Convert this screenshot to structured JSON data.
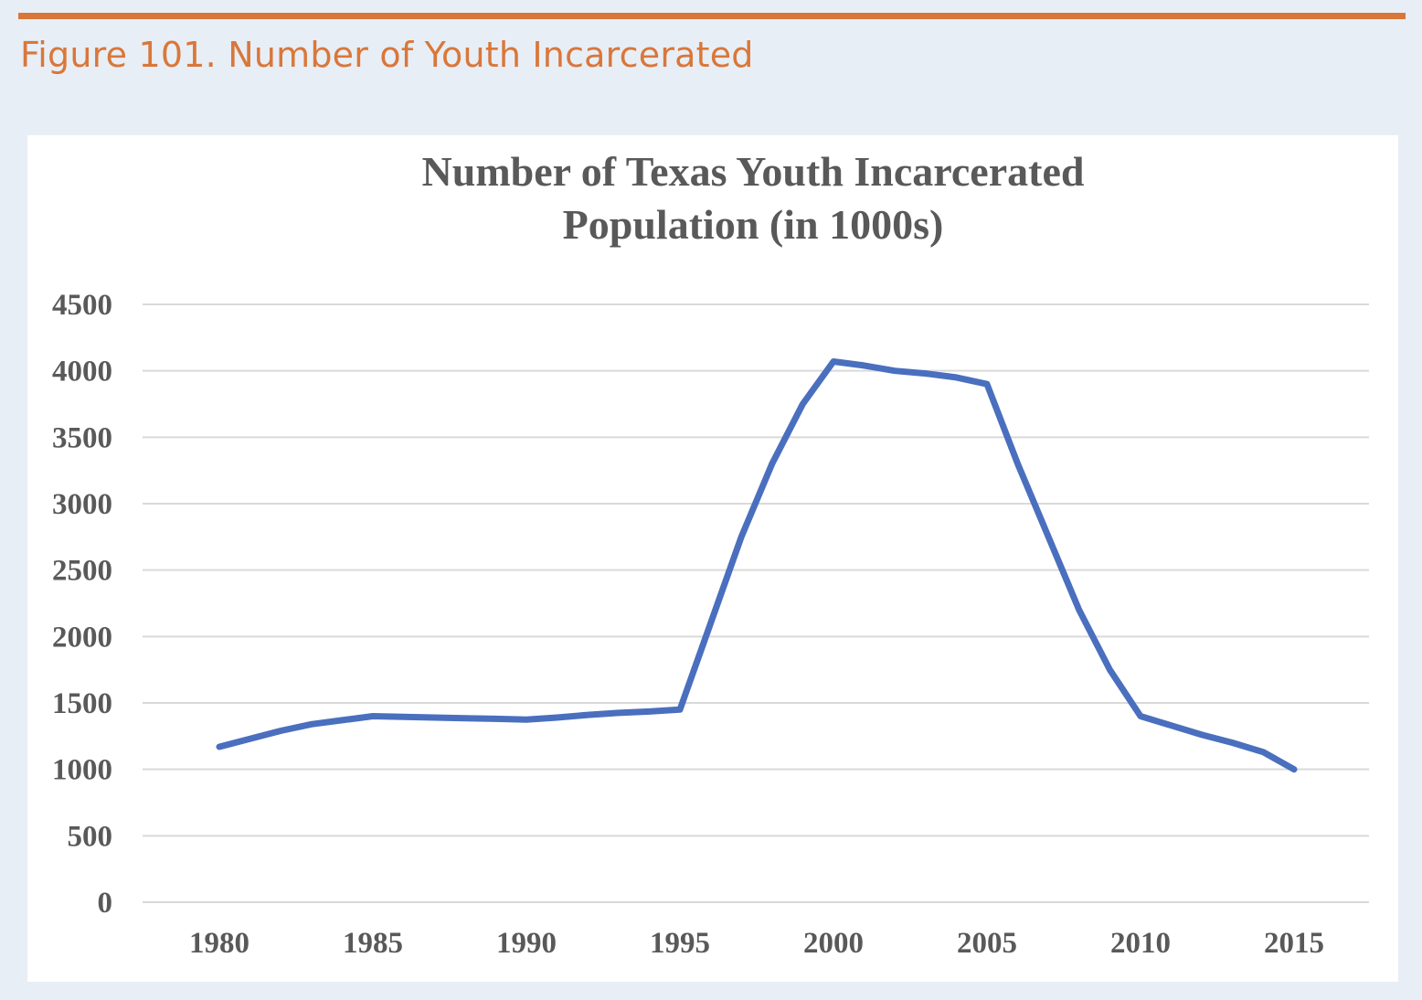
{
  "figure": {
    "caption": "Figure 101. Number of Youth Incarcerated",
    "accent_color": "#d9773a",
    "background_color": "#e8eef5"
  },
  "chart_data": {
    "type": "line",
    "title_lines": [
      "Number of Texas Youth Incarcerated",
      "Population (in 1000s)"
    ],
    "x": [
      1980,
      1981,
      1982,
      1983,
      1984,
      1985,
      1986,
      1987,
      1988,
      1989,
      1990,
      1991,
      1992,
      1993,
      1994,
      1995,
      1996,
      1997,
      1998,
      1999,
      2000,
      2001,
      2002,
      2003,
      2004,
      2005,
      2006,
      2007,
      2008,
      2009,
      2010,
      2011,
      2012,
      2013,
      2014,
      2015
    ],
    "series": [
      {
        "name": "",
        "color": "#4a6fbe",
        "values": [
          1170,
          1230,
          1290,
          1340,
          1370,
          1400,
          1395,
          1390,
          1385,
          1380,
          1375,
          1390,
          1410,
          1425,
          1435,
          1450,
          2100,
          2750,
          3300,
          3750,
          4070,
          4040,
          4000,
          3980,
          3950,
          3900,
          3300,
          2750,
          2200,
          1750,
          1400,
          1330,
          1260,
          1200,
          1130,
          1000
        ]
      }
    ],
    "x_ticks": [
      "1980",
      "1985",
      "1990",
      "1995",
      "2000",
      "2005",
      "2010",
      "2015"
    ],
    "y_ticks": [
      "0",
      "500",
      "1000",
      "1500",
      "2000",
      "2500",
      "3000",
      "3500",
      "4000",
      "4500"
    ],
    "ylim": [
      0,
      4500
    ],
    "xlim": [
      1980,
      2015
    ],
    "grid": true,
    "legend": "none",
    "xlabel": "",
    "ylabel": ""
  }
}
